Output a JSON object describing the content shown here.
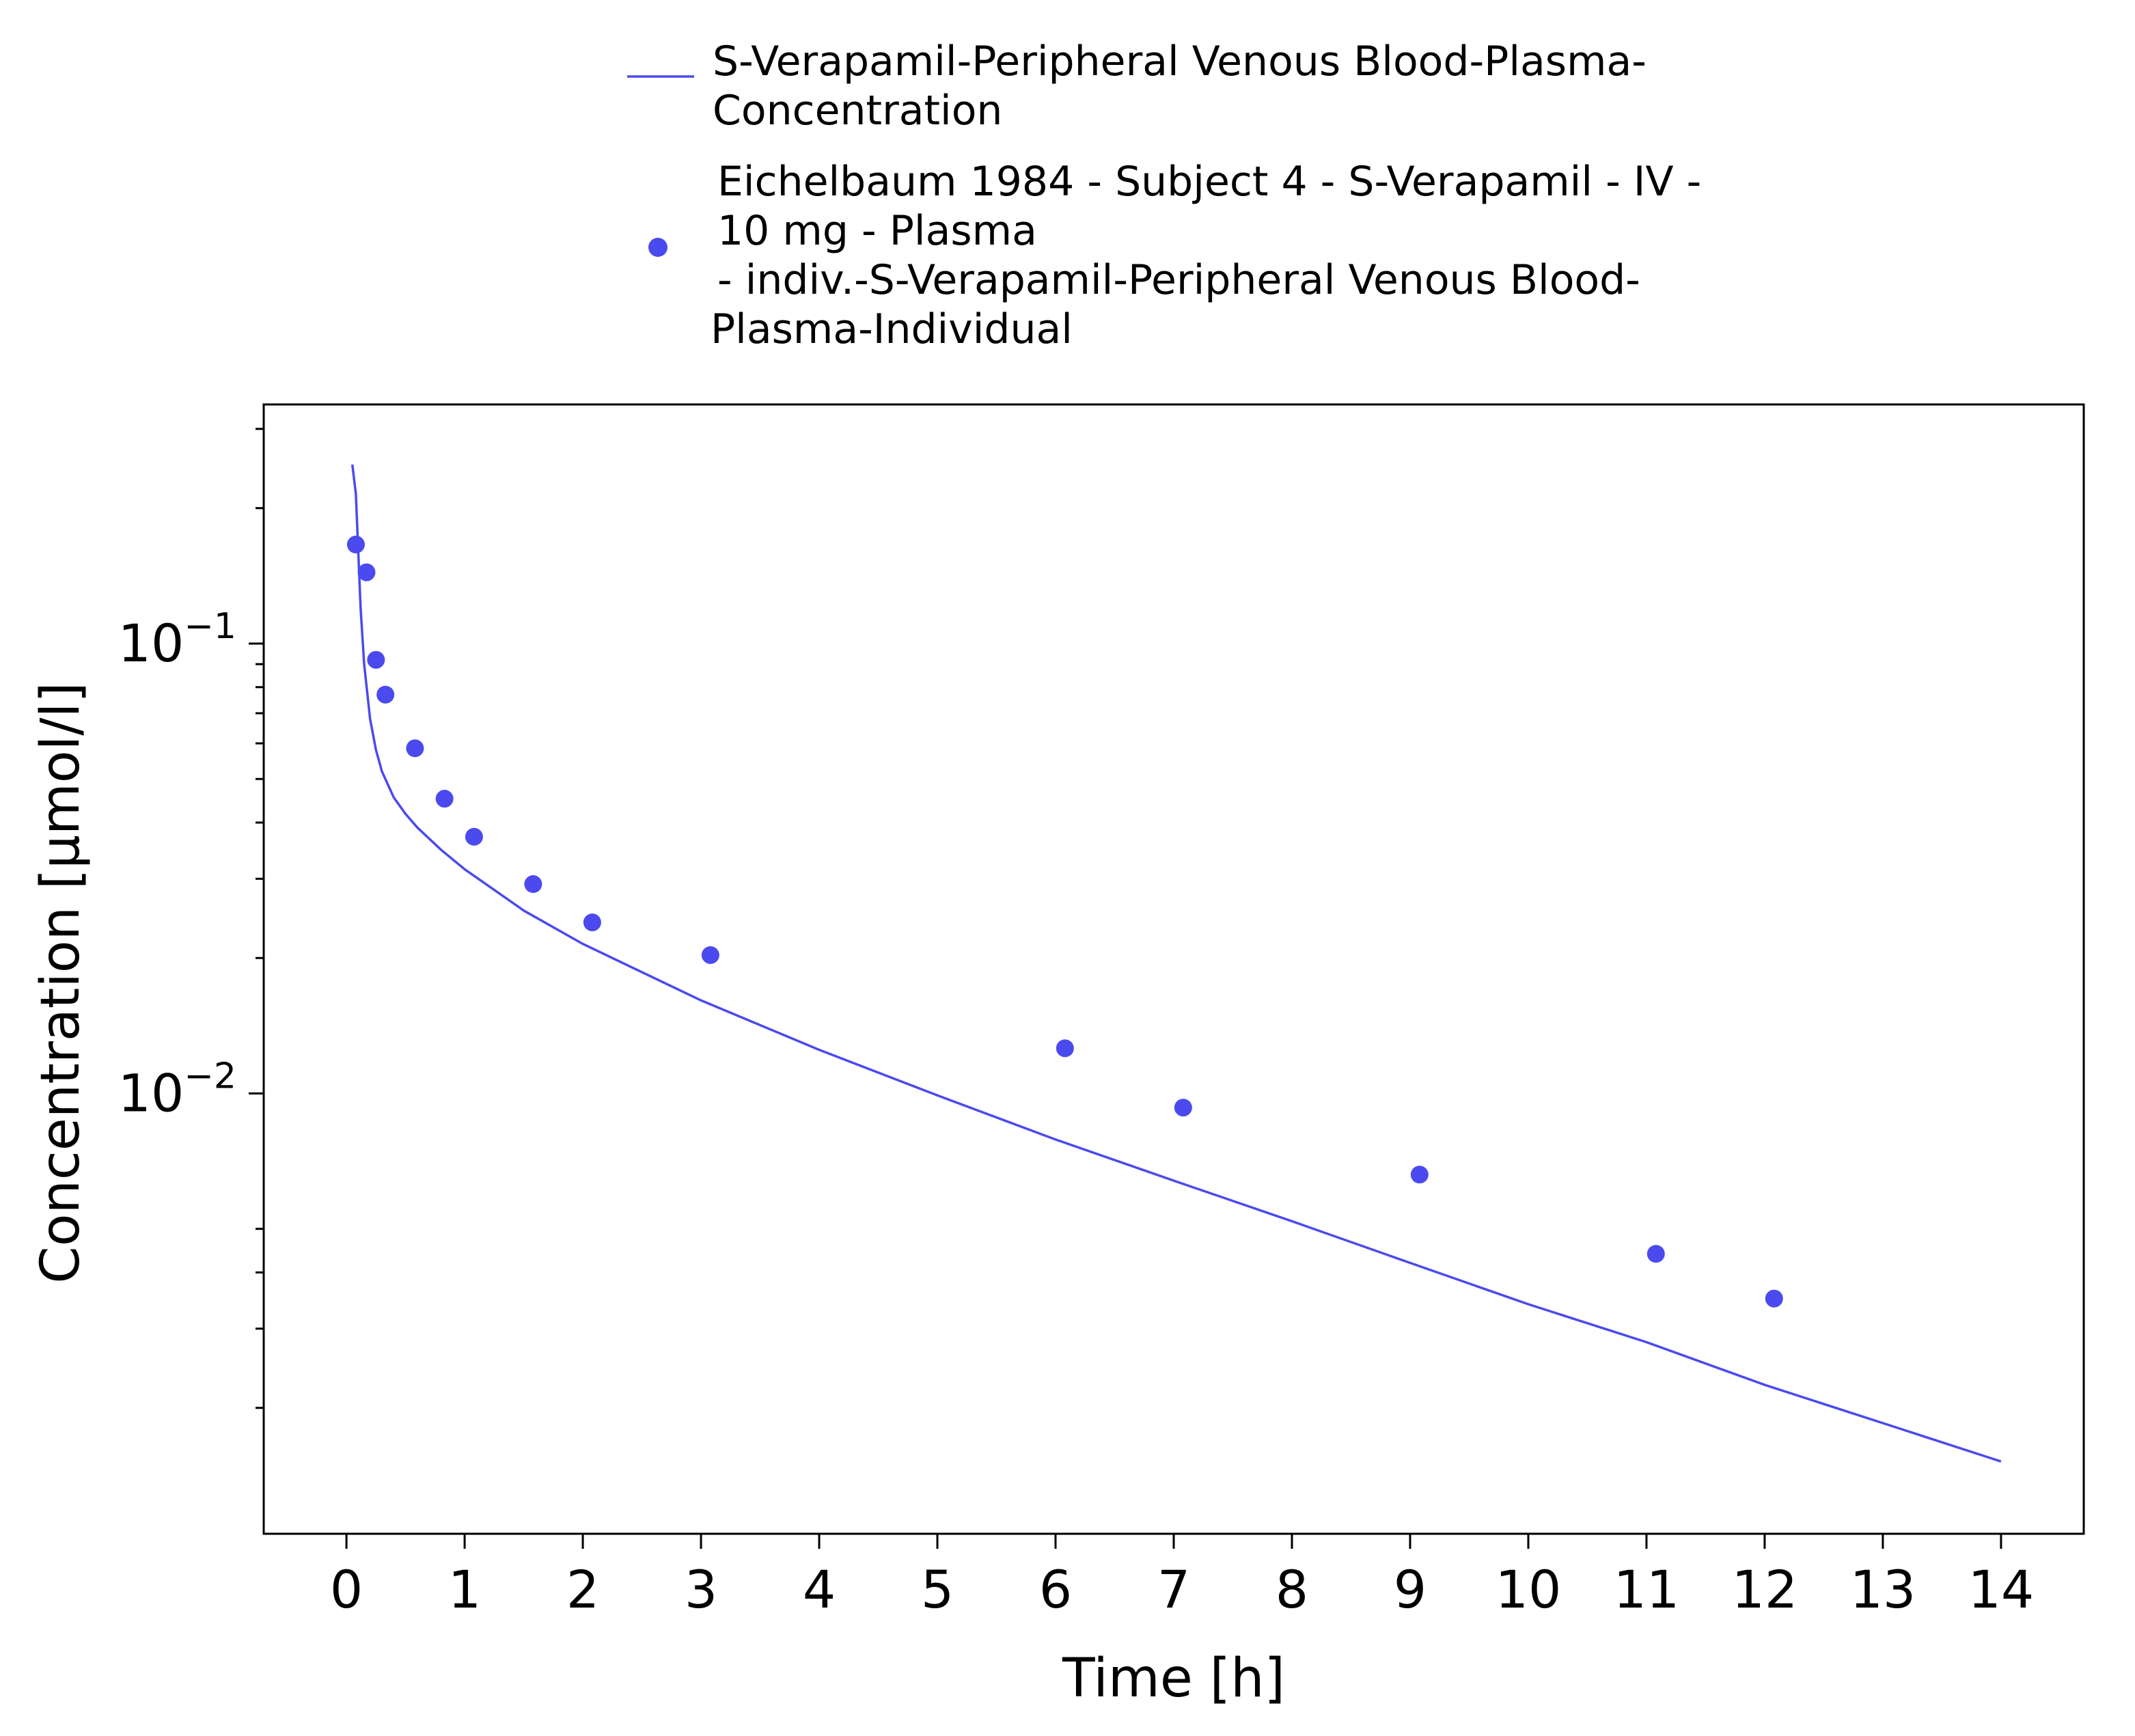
{
  "chart_data": {
    "type": "scatter",
    "xlabel": "Time [h]",
    "ylabel": "Concentration [µmol/l]",
    "xlim": [
      -0.7,
      14.7
    ],
    "ylim": [
      0.00105,
      0.34
    ],
    "yscale": "log",
    "grid": false,
    "legend_position": "top",
    "x_ticks": [
      0,
      1,
      2,
      3,
      4,
      5,
      6,
      7,
      8,
      9,
      10,
      11,
      12,
      13,
      14
    ],
    "x_tick_labels": [
      "0",
      "1",
      "2",
      "3",
      "4",
      "5",
      "6",
      "7",
      "8",
      "9",
      "10",
      "11",
      "12",
      "13",
      "14"
    ],
    "y_ticks": [
      0.1,
      0.01
    ],
    "y_tick_labels": [
      {
        "base": "10",
        "exp": "−1"
      },
      {
        "base": "10",
        "exp": "−2"
      }
    ],
    "y_minor_ticks": [
      0.002,
      0.003,
      0.004,
      0.005,
      0.02,
      0.03,
      0.04,
      0.05,
      0.06,
      0.07,
      0.08,
      0.09,
      0.2,
      0.3
    ],
    "series": [
      {
        "name": "S-Verapamil-Peripheral Venous Blood-Plasma-Concentration",
        "legend_lines": [
          "S-Verapamil-Peripheral Venous Blood-Plasma-",
          "Concentration"
        ],
        "kind": "line",
        "color": "#4a4aee",
        "x": [
          0.05,
          0.08,
          0.1,
          0.12,
          0.15,
          0.2,
          0.25,
          0.3,
          0.4,
          0.5,
          0.6,
          0.8,
          1.0,
          1.5,
          2.0,
          3.0,
          4.0,
          5.0,
          6.0,
          7.0,
          8.0,
          9.0,
          10.0,
          11.0,
          12.0,
          13.0,
          14.0
        ],
        "y": [
          0.25,
          0.215,
          0.16,
          0.12,
          0.09,
          0.068,
          0.058,
          0.052,
          0.0455,
          0.0418,
          0.039,
          0.0348,
          0.0315,
          0.0255,
          0.0215,
          0.0161,
          0.0125,
          0.0099,
          0.0079,
          0.0064,
          0.0052,
          0.0042,
          0.0034,
          0.0028,
          0.00225,
          0.00185,
          0.00152
        ]
      },
      {
        "name": "Eichelbaum 1984 - Subject 4 - S-Verapamil - IV - 10 mg - Plasma - indiv.-S-Verapamil-Peripheral Venous Blood-Plasma-Individual",
        "legend_lines": [
          "Eichelbaum 1984 - Subject 4 - S-Verapamil - IV -",
          "10 mg - Plasma",
          "- indiv.-S-Verapamil-Peripheral Venous Blood-",
          "Plasma-Individual"
        ],
        "kind": "scatter",
        "color": "#4a4aee",
        "x": [
          0.08,
          0.17,
          0.25,
          0.33,
          0.58,
          0.83,
          1.08,
          1.58,
          2.08,
          3.08,
          6.08,
          7.08,
          9.08,
          11.08,
          12.08
        ],
        "y": [
          0.166,
          0.144,
          0.092,
          0.077,
          0.0585,
          0.0452,
          0.0372,
          0.0292,
          0.024,
          0.0203,
          0.0126,
          0.0093,
          0.0066,
          0.0044,
          0.0035
        ]
      }
    ]
  }
}
